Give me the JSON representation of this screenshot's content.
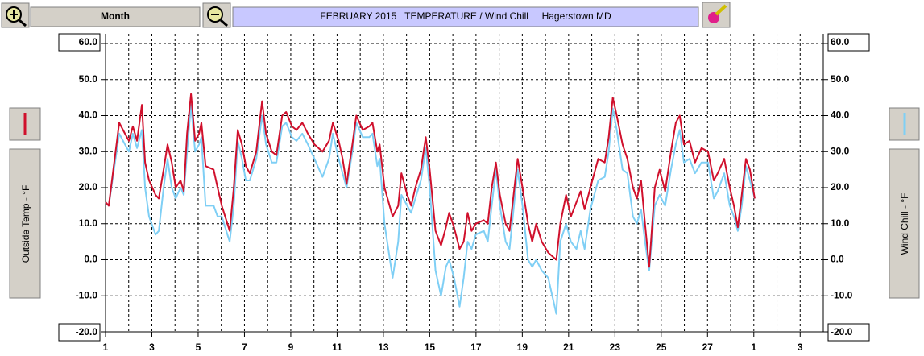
{
  "toolbar": {
    "period": "Month"
  },
  "chart_data": {
    "type": "line",
    "title": "FEBRUARY 2015   TEMPERATURE / Wind Chill     Hagerstown MD",
    "ylabel": "Outside Temp - °F",
    "y2label": "Wind Chill - °F",
    "x": [
      0,
      0.14,
      0.59,
      0.84,
      1.01,
      1.18,
      1.36,
      1.57,
      1.71,
      1.88,
      2.16,
      2.3,
      2.51,
      2.68,
      2.86,
      3.03,
      3.24,
      3.38,
      3.52,
      3.69,
      3.87,
      4.04,
      4.14,
      4.32,
      4.67,
      4.84,
      5.02,
      5.36,
      5.54,
      5.71,
      5.89,
      6.06,
      6.23,
      6.51,
      6.76,
      6.93,
      7.18,
      7.38,
      7.63,
      7.8,
      8.05,
      8.25,
      8.5,
      8.74,
      9.02,
      9.37,
      9.65,
      9.82,
      10.07,
      10.24,
      10.41,
      10.66,
      10.83,
      11.11,
      11.39,
      11.53,
      11.74,
      11.84,
      12.05,
      12.4,
      12.64,
      12.78,
      13.03,
      13.2,
      13.38,
      13.62,
      13.83,
      14.0,
      14.25,
      14.49,
      14.7,
      14.84,
      15.05,
      15.29,
      15.47,
      15.64,
      15.81,
      15.99,
      16.34,
      16.51,
      16.68,
      16.86,
      17.03,
      17.28,
      17.45,
      17.8,
      18.01,
      18.25,
      18.43,
      18.6,
      18.84,
      19.12,
      19.47,
      19.64,
      19.89,
      20.1,
      20.34,
      20.52,
      20.69,
      20.94,
      21.11,
      21.28,
      21.56,
      21.73,
      21.91,
      22.08,
      22.33,
      22.54,
      22.78,
      22.95,
      23.13,
      23.3,
      23.48,
      23.72,
      23.93,
      24.17,
      24.42,
      24.63,
      24.8,
      24.98,
      25.22,
      25.46,
      25.74,
      26.02,
      26.27,
      26.44,
      26.72,
      26.96,
      27.14,
      27.31,
      27.48,
      27.66,
      27.83,
      28.04
    ],
    "series": [
      {
        "name": "Wind Chill",
        "color": "#7fcff5",
        "axis": "y2",
        "values": [
          16,
          15,
          35,
          32,
          30,
          35,
          31,
          36,
          20,
          12,
          7,
          8,
          20,
          28,
          20,
          17,
          20,
          18,
          30,
          43,
          30,
          32,
          34,
          15,
          15,
          12,
          12,
          5,
          15,
          33,
          28,
          22,
          22,
          28,
          40,
          32,
          27,
          27,
          37,
          38,
          34,
          33,
          35,
          32,
          28,
          23,
          28,
          35,
          28,
          24,
          20,
          30,
          38,
          34,
          34,
          35,
          26,
          28,
          10,
          -5,
          5,
          18,
          15,
          13,
          17,
          22,
          31,
          20,
          -3,
          -10,
          -2,
          0,
          -5,
          -13,
          -5,
          5,
          3,
          7,
          8,
          5,
          15,
          25,
          15,
          5,
          3,
          25,
          15,
          0,
          -2,
          0,
          -3,
          -5,
          -15,
          5,
          10,
          5,
          3,
          8,
          3,
          14,
          18,
          22,
          23,
          30,
          42,
          36,
          25,
          24,
          12,
          10,
          14,
          5,
          -3,
          15,
          18,
          15,
          25,
          32,
          36,
          27,
          28,
          24,
          27,
          27,
          17,
          19,
          24,
          15,
          12,
          8,
          15,
          26,
          22,
          17
        ]
      },
      {
        "name": "Outside Temp",
        "color": "#d0102c",
        "values": [
          16,
          15,
          38,
          35,
          33,
          37,
          33,
          43,
          27,
          22,
          18,
          17,
          25,
          32,
          27,
          20,
          22,
          19,
          35,
          46,
          33,
          35,
          38,
          26,
          25,
          20,
          15,
          8,
          20,
          36,
          32,
          26,
          24,
          30,
          44,
          35,
          30,
          29,
          40,
          41,
          37,
          36,
          38,
          35,
          32,
          30,
          33,
          38,
          33,
          28,
          21,
          32,
          40,
          36,
          37,
          38,
          30,
          32,
          20,
          12,
          15,
          24,
          18,
          15,
          20,
          25,
          34,
          25,
          8,
          4,
          9,
          13,
          9,
          3,
          5,
          13,
          8,
          10,
          11,
          10,
          20,
          27,
          18,
          10,
          8,
          28,
          20,
          10,
          5,
          10,
          5,
          2,
          0,
          10,
          18,
          12,
          16,
          19,
          14,
          20,
          24,
          28,
          27,
          34,
          45,
          40,
          32,
          28,
          20,
          17,
          22,
          10,
          -2,
          20,
          25,
          19,
          30,
          38,
          40,
          32,
          33,
          27,
          31,
          30,
          22,
          24,
          28,
          20,
          15,
          9,
          18,
          28,
          25,
          17
        ]
      }
    ],
    "xlim": [
      0,
      31
    ],
    "xticks": [
      {
        "value": 0,
        "label": "1"
      },
      {
        "value": 2,
        "label": "3"
      },
      {
        "value": 4,
        "label": "5"
      },
      {
        "value": 6,
        "label": "7"
      },
      {
        "value": 8,
        "label": "9"
      },
      {
        "value": 10,
        "label": "11"
      },
      {
        "value": 12,
        "label": "13"
      },
      {
        "value": 14,
        "label": "15"
      },
      {
        "value": 16,
        "label": "17"
      },
      {
        "value": 18,
        "label": "19"
      },
      {
        "value": 20,
        "label": "21"
      },
      {
        "value": 22,
        "label": "23"
      },
      {
        "value": 24,
        "label": "25"
      },
      {
        "value": 26,
        "label": "27"
      },
      {
        "value": 28,
        "label": "1"
      },
      {
        "value": 30,
        "label": "3"
      }
    ],
    "xminor_ticks": [
      1,
      3,
      5,
      7,
      9,
      11,
      13,
      15,
      17,
      19,
      21,
      23,
      25,
      27,
      29,
      31
    ],
    "ylim": [
      -20,
      60
    ],
    "yticks": [
      {
        "value": -20,
        "label": "-20.0"
      },
      {
        "value": -10,
        "label": "-10.0"
      },
      {
        "value": 0,
        "label": "0.0"
      },
      {
        "value": 10,
        "label": "10.0"
      },
      {
        "value": 20,
        "label": "20.0"
      },
      {
        "value": 30,
        "label": "30.0"
      },
      {
        "value": 40,
        "label": "40.0"
      },
      {
        "value": 50,
        "label": "50.0"
      },
      {
        "value": 60,
        "label": "60.0"
      }
    ],
    "y2lim": [
      -20,
      60
    ],
    "y2ticks": [
      {
        "value": -20,
        "label": "-20.0"
      },
      {
        "value": -10,
        "label": "-10.0"
      },
      {
        "value": 0,
        "label": "0.0"
      },
      {
        "value": 10,
        "label": "10.0"
      },
      {
        "value": 20,
        "label": "20.0"
      },
      {
        "value": 30,
        "label": "30.0"
      },
      {
        "value": 40,
        "label": "40.0"
      },
      {
        "value": 50,
        "label": "50.0"
      },
      {
        "value": 60,
        "label": "60.0"
      }
    ],
    "grid": true
  }
}
